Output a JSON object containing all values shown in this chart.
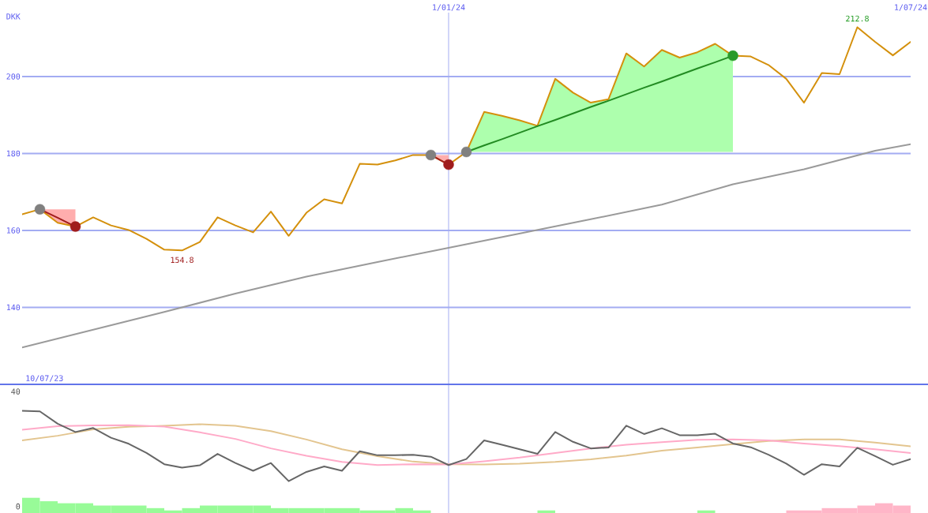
{
  "chart_data": [
    {
      "type": "line",
      "ylabel": "DKK",
      "xlim": [
        "2023-07-17",
        "2024-07-01"
      ],
      "xticks": [
        {
          "value": "2024-01-01",
          "label": "1/01/24"
        },
        {
          "value": "2024-07-01",
          "label": "1/07/24"
        }
      ],
      "ylim": [
        120,
        216.6
      ],
      "yticks": [
        140,
        160,
        180,
        200
      ],
      "grid": "y",
      "ref_lines": [
        {
          "axis": "x",
          "value": "2024-01-01",
          "color": "#a3acf2"
        }
      ],
      "x": [
        "2023-07-17",
        "2023-07-24",
        "2023-07-31",
        "2023-08-07",
        "2023-08-14",
        "2023-08-21",
        "2023-08-28",
        "2023-09-04",
        "2023-09-11",
        "2023-09-18",
        "2023-09-25",
        "2023-10-02",
        "2023-10-09",
        "2023-10-16",
        "2023-10-23",
        "2023-10-30",
        "2023-11-06",
        "2023-11-13",
        "2023-11-20",
        "2023-11-27",
        "2023-12-04",
        "2023-12-11",
        "2023-12-18",
        "2023-12-25",
        "2024-01-01",
        "2024-01-08",
        "2024-01-15",
        "2024-01-22",
        "2024-01-29",
        "2024-02-05",
        "2024-02-12",
        "2024-02-19",
        "2024-02-26",
        "2024-03-04",
        "2024-03-11",
        "2024-03-18",
        "2024-03-25",
        "2024-04-01",
        "2024-04-08",
        "2024-04-15",
        "2024-04-22",
        "2024-04-29",
        "2024-05-06",
        "2024-05-13",
        "2024-05-20",
        "2024-05-27",
        "2024-06-03",
        "2024-06-10",
        "2024-06-17",
        "2024-06-24",
        "2024-07-01"
      ],
      "series": [
        {
          "color": "#9a9a9a",
          "x": [
            "2023-07-17",
            "2023-08-14",
            "2023-09-11",
            "2023-10-09",
            "2023-11-06",
            "2023-12-04",
            "2024-01-01",
            "2024-01-29",
            "2024-02-26",
            "2024-03-25",
            "2024-04-22",
            "2024-05-20",
            "2024-06-17",
            "2024-07-01"
          ],
          "values": [
            129.6,
            134.2,
            138.8,
            143.6,
            148.0,
            151.8,
            155.5,
            159.2,
            162.9,
            166.7,
            172.0,
            175.9,
            180.7,
            182.4
          ]
        },
        {
          "color": "#d4900c",
          "values": [
            164.2,
            165.5,
            162.0,
            161.0,
            163.4,
            161.3,
            160.1,
            157.8,
            155.0,
            154.8,
            157.0,
            163.4,
            161.3,
            159.5,
            164.9,
            158.6,
            164.6,
            168.1,
            167.0,
            177.3,
            177.1,
            178.2,
            179.6,
            179.6,
            177.1,
            180.4,
            190.8,
            189.8,
            188.6,
            187.2,
            199.4,
            195.8,
            193.2,
            194.1,
            206.0,
            202.6,
            206.9,
            204.9,
            206.3,
            208.5,
            205.4,
            205.2,
            203.0,
            199.4,
            193.2,
            200.9,
            200.6,
            212.8,
            209.0,
            205.5,
            209.0
          ]
        },
        {
          "color": "#a01c1c",
          "x": [
            "2023-07-24",
            "2023-07-31",
            "2023-08-07"
          ],
          "values": [
            165.5,
            163.3,
            161.0
          ],
          "lower": [
            165.5,
            162.0,
            161.0
          ],
          "upper": [
            165.5,
            165.5,
            165.5
          ]
        },
        {
          "color": "#a01c1c",
          "x": [
            "2023-12-25",
            "2024-01-01"
          ],
          "values": [
            179.6,
            177.1
          ],
          "lower": [
            179.6,
            177.1
          ],
          "upper": [
            179.6,
            179.6
          ]
        },
        {
          "color": "#228b22",
          "x": [
            "2024-01-08",
            "2024-01-15",
            "2024-01-22",
            "2024-01-29",
            "2024-02-05",
            "2024-02-12",
            "2024-02-19",
            "2024-02-26",
            "2024-03-04",
            "2024-03-11",
            "2024-03-18",
            "2024-03-25",
            "2024-04-01",
            "2024-04-08",
            "2024-04-15",
            "2024-04-22"
          ],
          "values": [
            180.4,
            182.1,
            183.7,
            185.4,
            187.1,
            188.7,
            190.4,
            192.1,
            193.7,
            195.4,
            197.1,
            198.7,
            200.4,
            202.1,
            203.7,
            205.4
          ],
          "lower": [
            180.4,
            180.4,
            180.4,
            180.4,
            180.4,
            180.4,
            180.4,
            180.4,
            180.4,
            180.4,
            180.4,
            180.4,
            180.4,
            180.4,
            180.4,
            180.4
          ],
          "upper": [
            180.4,
            190.8,
            189.8,
            188.6,
            187.2,
            199.4,
            195.8,
            193.2,
            194.1,
            206.0,
            202.6,
            206.9,
            204.9,
            206.3,
            208.5,
            205.4
          ]
        },
        {
          "type": "scatter",
          "marker": "circle",
          "x": [
            "2023-07-24",
            "2023-08-07",
            "2023-12-25",
            "2024-01-01",
            "2024-01-08",
            "2024-04-22"
          ],
          "values": [
            165.5,
            161.0,
            179.6,
            177.1,
            180.4,
            205.4
          ],
          "colors": [
            "#808080",
            "#a01c1c",
            "#808080",
            "#a01c1c",
            "#808080",
            "#2a9a2a"
          ]
        }
      ],
      "annotations": [
        "10/07/23",
        {
          "text": "154.8",
          "x": "2023-09-18",
          "y": 154.8
        },
        {
          "text": "212.8",
          "x": "2024-06-10",
          "y": 212.8
        }
      ]
    },
    {
      "type": "line",
      "xlim": [
        "2023-07-17",
        "2024-07-01"
      ],
      "ylim": [
        -2.3,
        42.5
      ],
      "yticks": [
        0,
        40
      ],
      "tick_labels": "y",
      "ref_lines": [
        {
          "axis": "x",
          "value": "2024-01-01",
          "color": "#a3acf2"
        }
      ],
      "x": [
        "2023-07-17",
        "2023-07-24",
        "2023-07-31",
        "2023-08-07",
        "2023-08-14",
        "2023-08-21",
        "2023-08-28",
        "2023-09-04",
        "2023-09-11",
        "2023-09-18",
        "2023-09-25",
        "2023-10-02",
        "2023-10-09",
        "2023-10-16",
        "2023-10-23",
        "2023-10-30",
        "2023-11-06",
        "2023-11-13",
        "2023-11-20",
        "2023-11-27",
        "2023-12-04",
        "2023-12-11",
        "2023-12-18",
        "2023-12-25",
        "2024-01-01",
        "2024-01-08",
        "2024-01-15",
        "2024-01-22",
        "2024-01-29",
        "2024-02-05",
        "2024-02-12",
        "2024-02-19",
        "2024-02-26",
        "2024-03-04",
        "2024-03-11",
        "2024-03-18",
        "2024-03-25",
        "2024-04-01",
        "2024-04-08",
        "2024-04-15",
        "2024-04-22",
        "2024-04-29",
        "2024-05-06",
        "2024-05-13",
        "2024-05-20",
        "2024-05-27",
        "2024-06-03",
        "2024-06-10",
        "2024-06-17",
        "2024-06-24",
        "2024-07-01"
      ],
      "series": [
        {
          "type": "bar",
          "x": [
            "2023-07-20T12:00",
            "2023-07-27T12:00",
            "2023-08-03T12:00",
            "2023-08-10T12:00",
            "2023-08-17T12:00",
            "2023-08-24T12:00",
            "2023-08-31T12:00",
            "2023-09-07T12:00",
            "2023-09-14T12:00",
            "2023-09-21T12:00",
            "2023-09-28T12:00",
            "2023-10-05T12:00",
            "2023-10-12T12:00",
            "2023-10-19T12:00",
            "2023-10-26T12:00",
            "2023-11-02T12:00",
            "2023-11-09T12:00",
            "2023-11-16T12:00",
            "2023-11-23T12:00",
            "2023-11-30T12:00",
            "2023-12-07T12:00",
            "2023-12-14T12:00",
            "2023-12-21T12:00",
            "2024-02-08T12:00",
            "2024-04-11T12:00",
            "2024-05-16T12:00",
            "2024-05-23T12:00",
            "2024-05-30T12:00",
            "2024-06-06T12:00",
            "2024-06-13T12:00",
            "2024-06-20T12:00",
            "2024-06-27T12:00"
          ],
          "values": [
            5.3,
            4.1,
            3.4,
            3.4,
            2.6,
            2.6,
            2.6,
            1.7,
            0.9,
            1.7,
            2.6,
            2.6,
            2.6,
            2.6,
            1.7,
            1.7,
            1.7,
            1.7,
            1.7,
            0.9,
            0.9,
            1.7,
            0.9,
            0.9,
            0.9,
            0.9,
            0.9,
            1.7,
            1.7,
            2.6,
            3.4,
            2.6
          ],
          "base": [
            -2.3,
            -2.3,
            -2.3,
            -2.3,
            -2.3,
            -2.3,
            -2.3,
            -2.3,
            -2.3,
            -2.3,
            -2.3,
            -2.3,
            -2.3,
            -2.3,
            -2.3,
            -2.3,
            -2.3,
            -2.3,
            -2.3,
            -2.3,
            -2.3,
            -2.3,
            -2.3,
            -2.3,
            -2.3,
            -2.3,
            -2.3,
            -2.3,
            -2.3,
            -2.3,
            -2.3,
            -2.3
          ],
          "colors": [
            "#98fb98",
            "#98fb98",
            "#98fb98",
            "#98fb98",
            "#98fb98",
            "#98fb98",
            "#98fb98",
            "#98fb98",
            "#98fb98",
            "#98fb98",
            "#98fb98",
            "#98fb98",
            "#98fb98",
            "#98fb98",
            "#98fb98",
            "#98fb98",
            "#98fb98",
            "#98fb98",
            "#98fb98",
            "#98fb98",
            "#98fb98",
            "#98fb98",
            "#98fb98",
            "#98fb98",
            "#98fb98",
            "#ffb6c8",
            "#ffb6c8",
            "#ffb6c8",
            "#ffb6c8",
            "#ffb6c8",
            "#ffb6c8",
            "#ffb6c8"
          ]
        },
        {
          "color": "#e3c58f",
          "x": [
            "2023-07-17",
            "2023-07-31",
            "2023-08-14",
            "2023-08-28",
            "2023-09-11",
            "2023-09-25",
            "2023-10-09",
            "2023-10-23",
            "2023-11-06",
            "2023-11-20",
            "2023-12-04",
            "2023-12-18",
            "2024-01-01",
            "2024-01-15",
            "2024-01-29",
            "2024-02-12",
            "2024-02-26",
            "2024-03-11",
            "2024-03-25",
            "2024-04-08",
            "2024-04-22",
            "2024-05-06",
            "2024-05-20",
            "2024-06-03",
            "2024-06-17",
            "2024-07-01"
          ],
          "values": [
            23.0,
            24.6,
            26.8,
            27.7,
            28.1,
            28.6,
            28.1,
            26.2,
            23.3,
            19.9,
            17.5,
            15.6,
            14.7,
            14.6,
            14.9,
            15.5,
            16.4,
            17.7,
            19.4,
            20.5,
            21.7,
            22.8,
            23.3,
            23.3,
            22.2,
            20.9
          ]
        },
        {
          "color": "#ffaac8",
          "x": [
            "2023-07-17",
            "2023-07-31",
            "2023-08-14",
            "2023-08-28",
            "2023-09-11",
            "2023-09-25",
            "2023-10-09",
            "2023-10-23",
            "2023-11-06",
            "2023-11-20",
            "2023-12-04",
            "2023-12-18",
            "2024-01-01",
            "2024-01-15",
            "2024-01-29",
            "2024-02-12",
            "2024-02-26",
            "2024-03-11",
            "2024-03-25",
            "2024-04-08",
            "2024-04-22",
            "2024-05-06",
            "2024-05-20",
            "2024-06-03",
            "2024-06-17",
            "2024-07-01"
          ],
          "values": [
            26.7,
            27.9,
            28.2,
            28.3,
            27.8,
            25.8,
            23.5,
            20.2,
            17.6,
            15.5,
            14.4,
            14.7,
            14.6,
            15.7,
            17.0,
            18.6,
            20.2,
            21.5,
            22.4,
            23.2,
            23.3,
            23.0,
            21.9,
            21.0,
            19.9,
            18.6
          ]
        },
        {
          "color": "#666666",
          "values": [
            33.3,
            33.1,
            28.8,
            25.9,
            27.3,
            23.9,
            21.8,
            18.6,
            14.7,
            13.5,
            14.3,
            18.3,
            15.1,
            12.4,
            15.1,
            8.8,
            12.0,
            13.9,
            12.4,
            19.2,
            17.8,
            17.8,
            18.0,
            17.3,
            14.4,
            16.5,
            23.0,
            21.5,
            19.9,
            18.3,
            25.9,
            22.5,
            20.2,
            20.5,
            28.1,
            25.2,
            27.2,
            24.8,
            24.8,
            25.3,
            21.9,
            20.6,
            18.0,
            14.9,
            11.0,
            14.7,
            13.9,
            20.4,
            17.5,
            14.5,
            16.5
          ]
        }
      ]
    }
  ]
}
